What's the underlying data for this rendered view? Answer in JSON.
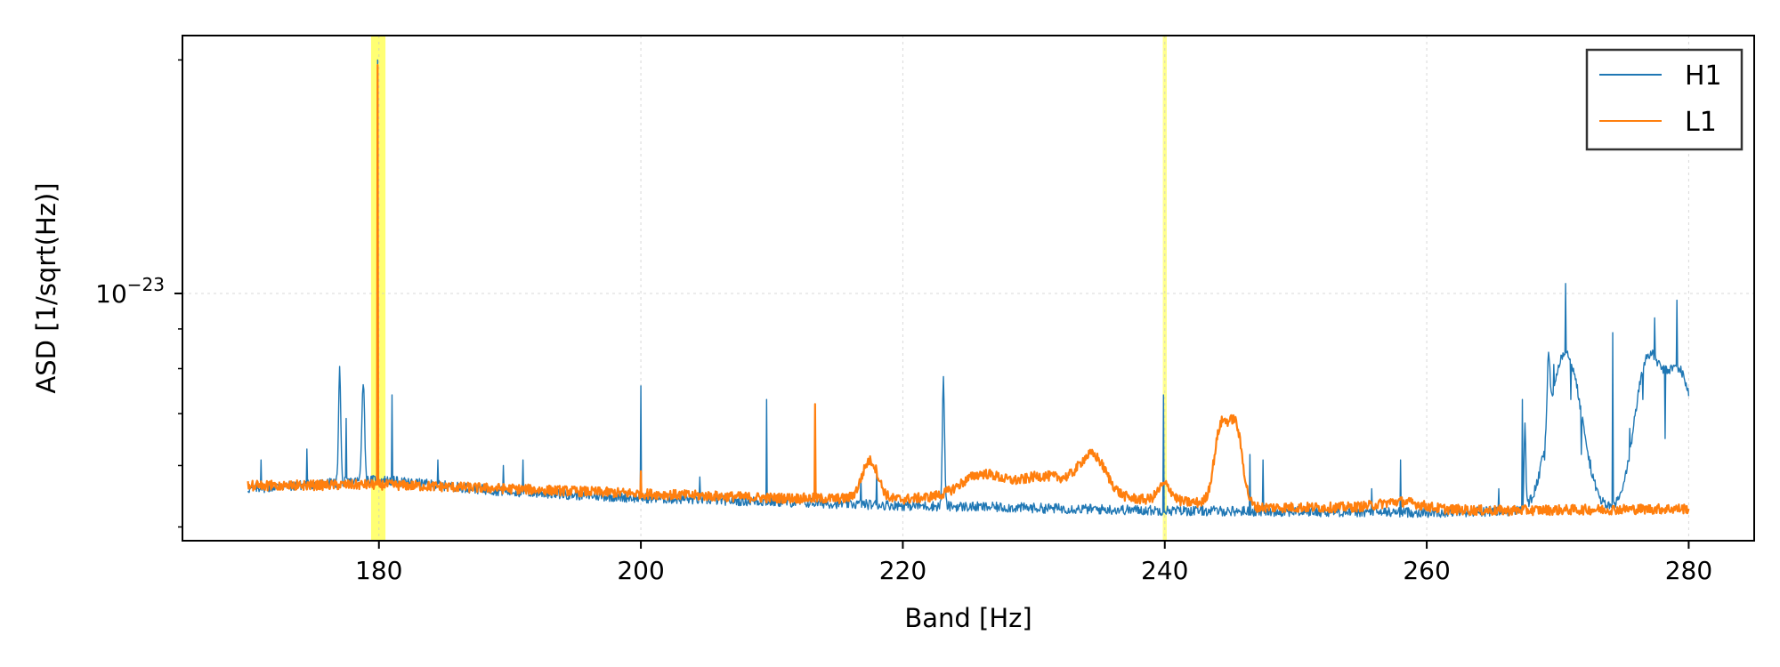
{
  "chart_data": {
    "type": "line",
    "title": "",
    "xlabel": "Band [Hz]",
    "ylabel": "ASD [1/sqrt(Hz)]",
    "xlim": [
      165,
      285
    ],
    "ylim": [
      4.8e-24,
      2.15e-23
    ],
    "yscale": "log",
    "grid": true,
    "legend_position": "top-right",
    "x_ticks": [
      180,
      200,
      220,
      240,
      260,
      280
    ],
    "y_ticks": [
      {
        "value": 1e-23,
        "base": "10",
        "exponent": "−23"
      }
    ],
    "highlight_bands": [
      {
        "x0": 179.4,
        "x1": 180.5,
        "color": "#ffff00",
        "opacity": 0.55
      },
      {
        "x0": 239.85,
        "x1": 240.15,
        "color": "#ffff00",
        "opacity": 0.45
      }
    ],
    "series": [
      {
        "name": "H1",
        "color": "#1f77b4",
        "baseline": [
          [
            170,
            5.6e-24
          ],
          [
            180,
            5.75e-24
          ],
          [
            190,
            5.55e-24
          ],
          [
            200,
            5.45e-24
          ],
          [
            220,
            5.33e-24
          ],
          [
            240,
            5.25e-24
          ],
          [
            260,
            5.22e-24
          ],
          [
            270,
            5.26e-24
          ],
          [
            280,
            5.3e-24
          ]
        ],
        "bumps": [
          [
            177,
            0.4,
            0.08
          ],
          [
            178.8,
            0.35,
            0.1
          ],
          [
            223.1,
            0.45,
            0.08
          ],
          [
            270.6,
            0.6,
            1.1
          ],
          [
            276.8,
            0.5,
            0.9
          ],
          [
            279.2,
            0.5,
            1.2
          ],
          [
            267.5,
            0.3,
            0.06
          ],
          [
            269.3,
            0.3,
            0.1
          ]
        ],
        "peaks": [
          [
            171,
            6.1e-24
          ],
          [
            174.5,
            6.3e-24
          ],
          [
            177.5,
            6.9e-24
          ],
          [
            179.9,
            2e-23
          ],
          [
            181,
            7.4e-24
          ],
          [
            184.5,
            6.1e-24
          ],
          [
            189.5,
            6e-24
          ],
          [
            191,
            6.1e-24
          ],
          [
            200,
            7.6e-24
          ],
          [
            204.5,
            5.8e-24
          ],
          [
            209.6,
            7.3e-24
          ],
          [
            216.8,
            5.8e-24
          ],
          [
            218,
            5.9e-24
          ],
          [
            239.9,
            7.4e-24
          ],
          [
            246.5,
            6.2e-24
          ],
          [
            247.5,
            6.1e-24
          ],
          [
            255.8,
            5.6e-24
          ],
          [
            258,
            6.1e-24
          ],
          [
            265.5,
            5.6e-24
          ],
          [
            267.3,
            7.3e-24
          ],
          [
            269,
            6.1e-24
          ],
          [
            269.7,
            8.1e-24
          ],
          [
            270.6,
            1.03e-23
          ],
          [
            271,
            7.3e-24
          ],
          [
            271.8,
            6.2e-24
          ],
          [
            272.5,
            6.1e-24
          ],
          [
            274.2,
            8.9e-24
          ],
          [
            275.5,
            6.7e-24
          ],
          [
            276.5,
            7.3e-24
          ],
          [
            277.4,
            9.3e-24
          ],
          [
            278.2,
            6.5e-24
          ],
          [
            279.1,
            9.8e-24
          ],
          [
            279.5,
            7.8e-24
          ]
        ]
      },
      {
        "name": "L1",
        "color": "#ff7f0e",
        "baseline": [
          [
            170,
            5.65e-24
          ],
          [
            180,
            5.67e-24
          ],
          [
            190,
            5.6e-24
          ],
          [
            200,
            5.52e-24
          ],
          [
            210,
            5.45e-24
          ],
          [
            220,
            5.43e-24
          ],
          [
            225,
            5.5e-24
          ],
          [
            230,
            5.55e-24
          ],
          [
            240,
            5.4e-24
          ],
          [
            245,
            5.35e-24
          ],
          [
            247,
            5.3e-24
          ],
          [
            255,
            5.3e-24
          ],
          [
            265,
            5.25e-24
          ],
          [
            280,
            5.28e-24
          ]
        ],
        "bumps": [
          [
            217.5,
            0.12,
            0.6
          ],
          [
            226,
            0.06,
            1.5
          ],
          [
            231,
            0.05,
            2
          ],
          [
            234.5,
            0.12,
            1
          ],
          [
            240,
            0.05,
            0.5
          ],
          [
            244.3,
            0.25,
            0.5
          ],
          [
            245.4,
            0.26,
            0.5
          ],
          [
            258,
            0.02,
            1.5
          ]
        ],
        "peaks": [
          [
            179.9,
            1.97e-23
          ],
          [
            213.3,
            7.2e-24
          ],
          [
            200,
            5.9e-24
          ]
        ]
      }
    ]
  }
}
